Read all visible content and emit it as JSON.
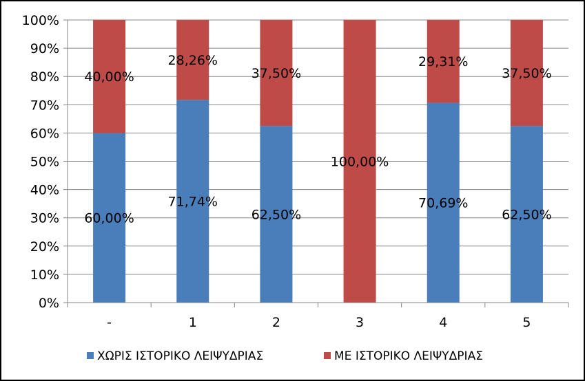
{
  "chart_data": {
    "type": "bar",
    "stacked": true,
    "percent_stacked": true,
    "categories": [
      "-",
      "1",
      "2",
      "3",
      "4",
      "5"
    ],
    "series": [
      {
        "name": "ΧΩΡΙΣ ΙΣΤΟΡΙΚΟ ΛΕΙΨΥΔΡΙΑΣ",
        "color": "#4a7ebb",
        "values": [
          60.0,
          71.74,
          62.5,
          0,
          70.69,
          62.5
        ],
        "labels": [
          "60,00%",
          "71,74%",
          "62,50%",
          "",
          "70,69%",
          "62,50%"
        ]
      },
      {
        "name": "ΜΕ ΙΣΤΟΡΙΚΟ ΛΕΙΨΥΔΡΙΑΣ",
        "color": "#be4b48",
        "values": [
          40.0,
          28.26,
          37.5,
          100.0,
          29.31,
          37.5
        ],
        "labels": [
          "40,00%",
          "28,26%",
          "37,50%",
          "100,00%",
          "29,31%",
          "37,50%"
        ]
      }
    ],
    "y_ticks": [
      "0%",
      "10%",
      "20%",
      "30%",
      "40%",
      "50%",
      "60%",
      "70%",
      "80%",
      "90%",
      "100%"
    ],
    "ylim": [
      0,
      100
    ],
    "grid": true,
    "legend_position": "bottom",
    "title": "",
    "xlabel": "",
    "ylabel": ""
  }
}
